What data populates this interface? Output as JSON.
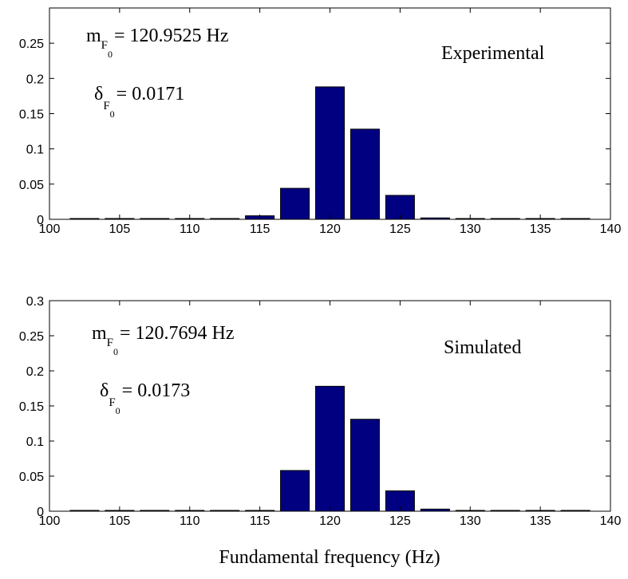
{
  "chart_data": [
    {
      "type": "bar",
      "title": "",
      "xlabel": "",
      "ylabel": "",
      "xlim": [
        100,
        140
      ],
      "ylim": [
        0,
        0.3
      ],
      "xticks": [
        "100",
        "105",
        "110",
        "115",
        "120",
        "125",
        "130",
        "135",
        "140"
      ],
      "yticks": [
        "0",
        "0.05",
        "0.1",
        "0.15",
        "0.2",
        "0.25"
      ],
      "bar_color": "#000080",
      "x": [
        102.5,
        105,
        107.5,
        110,
        112.5,
        115,
        117.5,
        120,
        122.5,
        125,
        127.5,
        130,
        132.5,
        135,
        137.5
      ],
      "values": [
        0,
        0,
        0,
        0.0005,
        0.001,
        0.005,
        0.044,
        0.188,
        0.128,
        0.034,
        0.002,
        0,
        0,
        0,
        0
      ],
      "annotations": {
        "label": "Experimental",
        "mean_prefix": "m",
        "mean_sub": "F",
        "mean_subsub": "0",
        "mean_value": "= 120.9525 Hz",
        "delta_prefix": "δ",
        "delta_sub": "F",
        "delta_subsub": "0",
        "delta_value": "= 0.0171"
      }
    },
    {
      "type": "bar",
      "title": "",
      "xlabel": "Fundamental frequency (Hz)",
      "ylabel": "",
      "xlim": [
        100,
        140
      ],
      "ylim": [
        0,
        0.3
      ],
      "xticks": [
        "100",
        "105",
        "110",
        "115",
        "120",
        "125",
        "130",
        "135",
        "140"
      ],
      "yticks": [
        "0",
        "0.05",
        "0.1",
        "0.15",
        "0.2",
        "0.25",
        "0.3"
      ],
      "bar_color": "#000080",
      "x": [
        102.5,
        105,
        107.5,
        110,
        112.5,
        115,
        117.5,
        120,
        122.5,
        125,
        127.5,
        130,
        132.5,
        135,
        137.5
      ],
      "values": [
        0,
        0,
        0,
        0,
        0,
        0.001,
        0.058,
        0.178,
        0.131,
        0.029,
        0.003,
        0,
        0,
        0,
        0
      ],
      "annotations": {
        "label": "Simulated",
        "mean_prefix": "m",
        "mean_sub": "F",
        "mean_subsub": "0",
        "mean_value": "= 120.7694 Hz",
        "delta_prefix": "δ",
        "delta_sub": "F",
        "delta_subsub": "0",
        "delta_value": "= 0.0173"
      }
    }
  ]
}
